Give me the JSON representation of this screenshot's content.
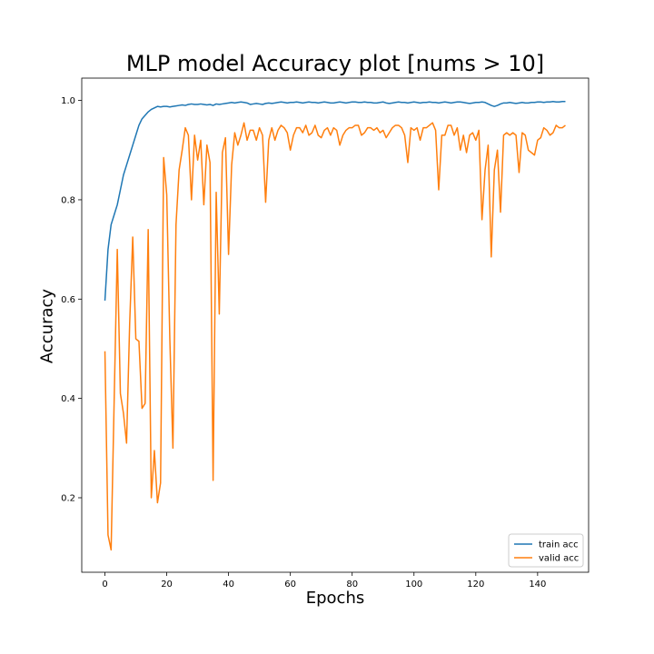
{
  "chart_data": {
    "type": "line",
    "title": "MLP model Accuracy plot [nums > 10]",
    "xlabel": "Epochs",
    "ylabel": "Accuracy",
    "xlim": [
      -7.5,
      156.5
    ],
    "ylim": [
      0.05,
      1.045
    ],
    "xticks": [
      0,
      20,
      40,
      60,
      80,
      100,
      120,
      140
    ],
    "yticks": [
      0.2,
      0.4,
      0.6,
      0.8,
      1.0
    ],
    "ytick_labels": [
      "0.2",
      "0.4",
      "0.6",
      "0.8",
      "1.0"
    ],
    "grid": false,
    "legend_position": "lower-right",
    "series": [
      {
        "name": "train acc",
        "color": "#1f77b4",
        "values": [
          0.597,
          0.7,
          0.75,
          0.77,
          0.79,
          0.82,
          0.85,
          0.87,
          0.89,
          0.91,
          0.93,
          0.95,
          0.963,
          0.97,
          0.977,
          0.982,
          0.985,
          0.988,
          0.987,
          0.988,
          0.988,
          0.987,
          0.988,
          0.989,
          0.99,
          0.991,
          0.99,
          0.992,
          0.993,
          0.992,
          0.992,
          0.993,
          0.992,
          0.991,
          0.992,
          0.99,
          0.993,
          0.992,
          0.993,
          0.994,
          0.995,
          0.996,
          0.995,
          0.996,
          0.997,
          0.996,
          0.995,
          0.992,
          0.993,
          0.994,
          0.993,
          0.992,
          0.994,
          0.995,
          0.994,
          0.995,
          0.996,
          0.997,
          0.996,
          0.995,
          0.996,
          0.996,
          0.997,
          0.996,
          0.995,
          0.996,
          0.997,
          0.996,
          0.996,
          0.995,
          0.996,
          0.997,
          0.996,
          0.995,
          0.995,
          0.996,
          0.997,
          0.996,
          0.995,
          0.996,
          0.997,
          0.997,
          0.996,
          0.996,
          0.997,
          0.996,
          0.996,
          0.995,
          0.995,
          0.996,
          0.997,
          0.995,
          0.994,
          0.995,
          0.996,
          0.997,
          0.996,
          0.996,
          0.995,
          0.996,
          0.997,
          0.996,
          0.995,
          0.996,
          0.996,
          0.997,
          0.996,
          0.996,
          0.995,
          0.996,
          0.997,
          0.996,
          0.995,
          0.996,
          0.997,
          0.997,
          0.996,
          0.995,
          0.994,
          0.995,
          0.996,
          0.996,
          0.997,
          0.996,
          0.993,
          0.99,
          0.988,
          0.99,
          0.993,
          0.995,
          0.995,
          0.996,
          0.995,
          0.994,
          0.995,
          0.996,
          0.995,
          0.995,
          0.996,
          0.996,
          0.997,
          0.997,
          0.996,
          0.997,
          0.997,
          0.998,
          0.997,
          0.997,
          0.998,
          0.998
        ]
      },
      {
        "name": "valid acc",
        "color": "#ff7f0e",
        "values": [
          0.495,
          0.125,
          0.095,
          0.4,
          0.7,
          0.41,
          0.37,
          0.31,
          0.55,
          0.725,
          0.52,
          0.515,
          0.38,
          0.39,
          0.74,
          0.2,
          0.295,
          0.19,
          0.23,
          0.885,
          0.81,
          0.52,
          0.3,
          0.75,
          0.86,
          0.9,
          0.945,
          0.93,
          0.8,
          0.93,
          0.88,
          0.92,
          0.79,
          0.91,
          0.875,
          0.235,
          0.815,
          0.57,
          0.895,
          0.925,
          0.69,
          0.87,
          0.935,
          0.91,
          0.93,
          0.955,
          0.92,
          0.94,
          0.94,
          0.92,
          0.945,
          0.93,
          0.795,
          0.92,
          0.945,
          0.92,
          0.94,
          0.95,
          0.945,
          0.935,
          0.9,
          0.93,
          0.945,
          0.945,
          0.935,
          0.95,
          0.93,
          0.935,
          0.95,
          0.93,
          0.925,
          0.94,
          0.945,
          0.93,
          0.945,
          0.94,
          0.91,
          0.93,
          0.94,
          0.945,
          0.945,
          0.95,
          0.95,
          0.93,
          0.935,
          0.945,
          0.945,
          0.94,
          0.945,
          0.935,
          0.94,
          0.925,
          0.935,
          0.945,
          0.95,
          0.95,
          0.945,
          0.93,
          0.875,
          0.945,
          0.94,
          0.945,
          0.92,
          0.945,
          0.945,
          0.95,
          0.955,
          0.94,
          0.82,
          0.93,
          0.93,
          0.95,
          0.95,
          0.93,
          0.945,
          0.9,
          0.93,
          0.895,
          0.93,
          0.935,
          0.92,
          0.94,
          0.76,
          0.86,
          0.91,
          0.685,
          0.86,
          0.9,
          0.775,
          0.93,
          0.935,
          0.93,
          0.935,
          0.93,
          0.855,
          0.935,
          0.93,
          0.9,
          0.895,
          0.89,
          0.92,
          0.925,
          0.945,
          0.94,
          0.93,
          0.935,
          0.95,
          0.945,
          0.945,
          0.95
        ]
      }
    ]
  }
}
